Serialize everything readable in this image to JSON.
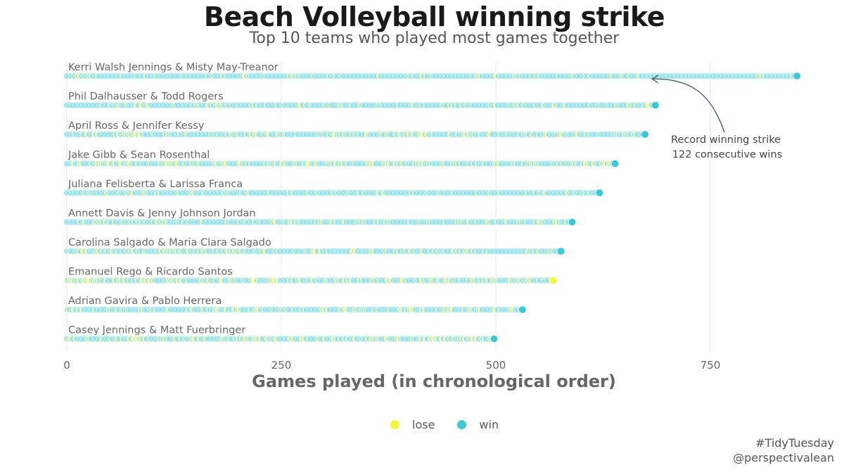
{
  "header": {
    "title": "Beach Volleyball winning strike",
    "subtitle": "Top 10 teams who played most games together"
  },
  "chart_data": {
    "type": "scatter",
    "title": "Beach Volleyball winning strike",
    "subtitle": "Top 10 teams who played most games together",
    "xlabel": "Games played (in chronological order)",
    "ylabel": "",
    "xlim": [
      0,
      850
    ],
    "x_ticks": [
      "0",
      "250",
      "500",
      "750"
    ],
    "grid": "vertical",
    "legend_position": "bottom",
    "colors": {
      "lose": "#f5f542",
      "win": "#3cc8d6"
    },
    "legend": [
      "lose",
      "win"
    ],
    "teams": [
      {
        "name": "Kerri Walsh Jennings & Misty May-Treanor",
        "games": 851
      },
      {
        "name": "Phil Dalhausser & Todd Rogers",
        "games": 686
      },
      {
        "name": "April Ross & Jennifer Kessy",
        "games": 674
      },
      {
        "name": "Jake Gibb & Sean Rosenthal",
        "games": 639
      },
      {
        "name": "Juliana Felisberta & Larissa Franca",
        "games": 621
      },
      {
        "name": "Annett Davis & Jenny Johnson Jordan",
        "games": 589
      },
      {
        "name": "Carolina Salgado & Maria Clara Salgado",
        "games": 576
      },
      {
        "name": "Emanuel Rego & Ricardo Santos",
        "games": 567
      },
      {
        "name": "Adrian Gavira & Pablo Herrera",
        "games": 531
      },
      {
        "name": "Casey Jennings & Matt Fuerbringer",
        "games": 498
      }
    ],
    "annotation": {
      "text_line1": "Record winning strike",
      "text_line2": "122 consecutive wins",
      "team": "Kerri Walsh Jennings & Misty May-Treanor",
      "streak_start_game": 675,
      "streak_length": 122
    }
  },
  "legend": {
    "lose_label": "lose",
    "win_label": "win"
  },
  "caption": {
    "line1": "#TidyTuesday",
    "line2": "@perspectivalean"
  }
}
